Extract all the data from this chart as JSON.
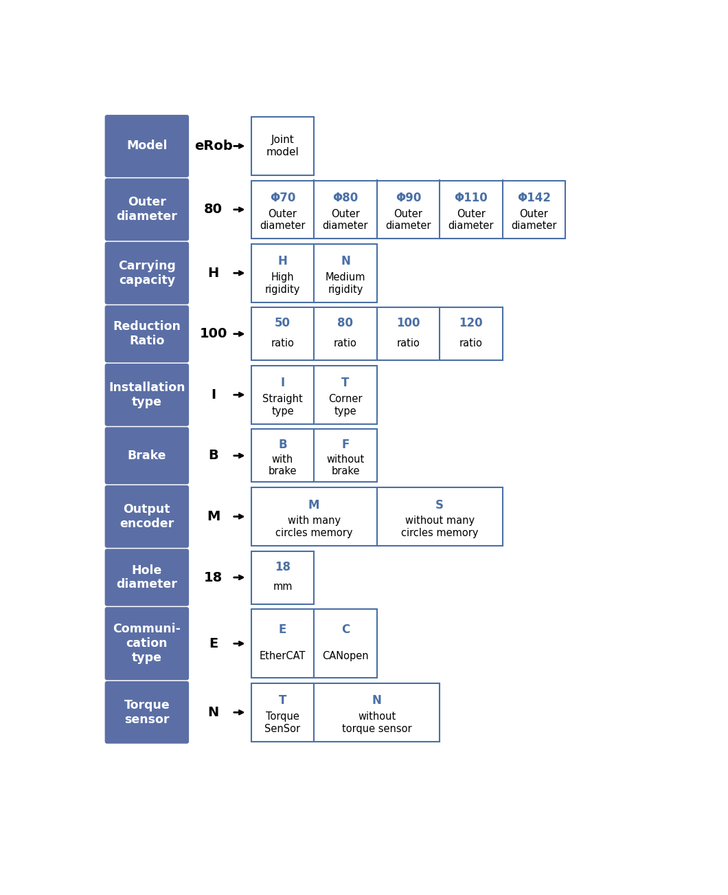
{
  "bg_color": "#ffffff",
  "box_color": "#5b6fa6",
  "box_text_color": "#ffffff",
  "cell_text_color": "#000000",
  "blue_text_color": "#4a6fa5",
  "border_color": "#4a6fa5",
  "rows": [
    {
      "label": "Model",
      "value": "eRob",
      "cells": [
        {
          "top_lines": [
            "Joint",
            "model"
          ],
          "code": "",
          "code_color": "black"
        }
      ]
    },
    {
      "label": "Outer\ndiameter",
      "value": "80",
      "cells": [
        {
          "top_lines": [
            "Outer",
            "diameter"
          ],
          "code": "Φ70",
          "code_color": "blue"
        },
        {
          "top_lines": [
            "Outer",
            "diameter"
          ],
          "code": "Φ80",
          "code_color": "blue"
        },
        {
          "top_lines": [
            "Outer",
            "diameter"
          ],
          "code": "Φ90",
          "code_color": "blue"
        },
        {
          "top_lines": [
            "Outer",
            "diameter"
          ],
          "code": "Φ110",
          "code_color": "blue"
        },
        {
          "top_lines": [
            "Outer",
            "diameter"
          ],
          "code": "Φ142",
          "code_color": "blue"
        }
      ]
    },
    {
      "label": "Carrying\ncapacity",
      "value": "H",
      "cells": [
        {
          "top_lines": [
            "High",
            "rigidity"
          ],
          "code": "H",
          "code_color": "blue"
        },
        {
          "top_lines": [
            "Medium",
            "rigidity"
          ],
          "code": "N",
          "code_color": "blue"
        }
      ]
    },
    {
      "label": "Reduction\nRatio",
      "value": "100",
      "cells": [
        {
          "top_lines": [
            "ratio"
          ],
          "code": "50",
          "code_color": "blue"
        },
        {
          "top_lines": [
            "ratio"
          ],
          "code": "80",
          "code_color": "blue"
        },
        {
          "top_lines": [
            "ratio"
          ],
          "code": "100",
          "code_color": "blue"
        },
        {
          "top_lines": [
            "ratio"
          ],
          "code": "120",
          "code_color": "blue"
        }
      ]
    },
    {
      "label": "Installation\ntype",
      "value": "I",
      "cells": [
        {
          "top_lines": [
            "Straight",
            "type"
          ],
          "code": "I",
          "code_color": "blue"
        },
        {
          "top_lines": [
            "Corner",
            "type"
          ],
          "code": "T",
          "code_color": "blue"
        }
      ]
    },
    {
      "label": "Brake",
      "value": "B",
      "cells": [
        {
          "top_lines": [
            "with",
            "brake"
          ],
          "code": "B",
          "code_color": "blue"
        },
        {
          "top_lines": [
            "without",
            "brake"
          ],
          "code": "F",
          "code_color": "blue"
        }
      ]
    },
    {
      "label": "Output\nencoder",
      "value": "M",
      "cells": [
        {
          "top_lines": [
            "with many",
            "circles memory"
          ],
          "code": "M",
          "code_color": "blue",
          "wide": true
        },
        {
          "top_lines": [
            "without many",
            "circles memory"
          ],
          "code": "S",
          "code_color": "blue",
          "wide": true
        }
      ]
    },
    {
      "label": "Hole\ndiameter",
      "value": "18",
      "cells": [
        {
          "top_lines": [
            "mm"
          ],
          "code": "18",
          "code_color": "blue"
        }
      ]
    },
    {
      "label": "Communi-\ncation\ntype",
      "value": "E",
      "cells": [
        {
          "top_lines": [
            "EtherCAT"
          ],
          "code": "E",
          "code_color": "blue"
        },
        {
          "top_lines": [
            "CANopen"
          ],
          "code": "C",
          "code_color": "blue"
        }
      ]
    },
    {
      "label": "Torque\nsensor",
      "value": "N",
      "cells": [
        {
          "top_lines": [
            "Torque",
            "SenSor"
          ],
          "code": "T",
          "code_color": "blue"
        },
        {
          "top_lines": [
            "without",
            "torque sensor"
          ],
          "code": "N",
          "code_color": "blue",
          "wide": true
        }
      ]
    }
  ]
}
